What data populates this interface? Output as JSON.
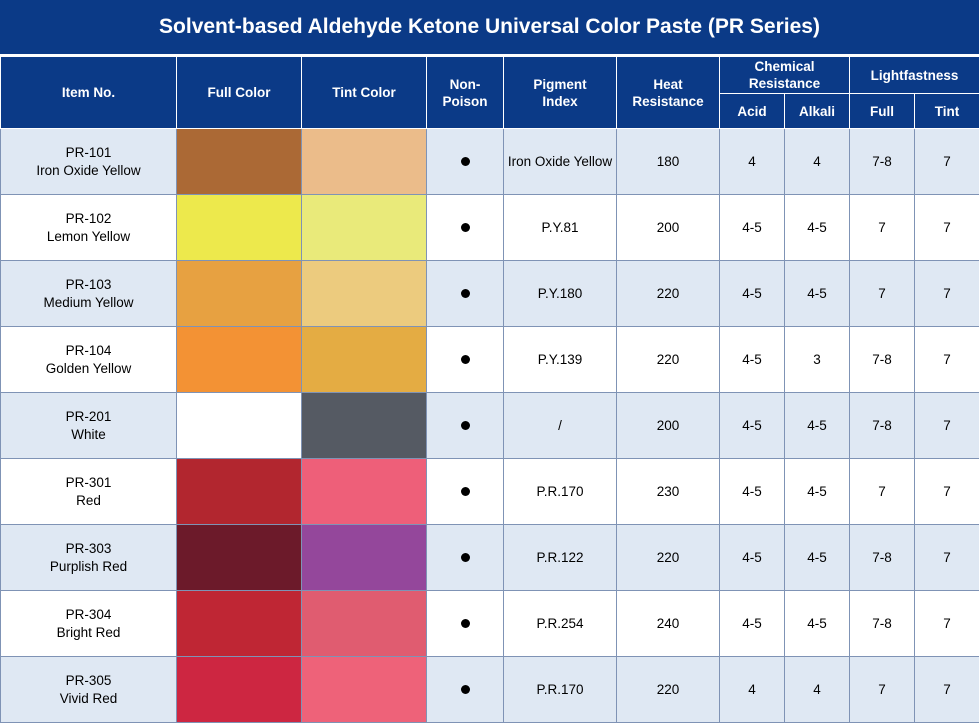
{
  "title": "Solvent-based Aldehyde Ketone Universal Color Paste (PR Series)",
  "headers": {
    "item_no": "Item No.",
    "full_color": "Full Color",
    "tint_color": "Tint Color",
    "non_poison_1": "Non-",
    "non_poison_2": "Poison",
    "pigment_1": "Pigment",
    "pigment_2": "Index",
    "heat_1": "Heat",
    "heat_2": "Resistance",
    "chem_1": "Chemical",
    "chem_2": "Resistance",
    "acid": "Acid",
    "alkali": "Alkali",
    "lightfastness": "Lightfastness",
    "full": "Full",
    "tint": "Tint"
  },
  "colors": {
    "header_bg": "#0b3a87",
    "row_alt_bg": "#dfe8f3"
  },
  "rows": [
    {
      "code": "PR-101",
      "name": "Iron Oxide Yellow",
      "full_color": "#ab6935",
      "tint_color": "#ebbc8a",
      "non_poison": "yes",
      "pigment": "Iron Oxide Yellow",
      "heat": "180",
      "acid": "4",
      "alkali": "4",
      "light_full": "7-8",
      "light_tint": "7"
    },
    {
      "code": "PR-102",
      "name": "Lemon Yellow",
      "full_color": "#ede94c",
      "tint_color": "#e9ea7a",
      "non_poison": "yes",
      "pigment": "P.Y.81",
      "heat": "200",
      "acid": "4-5",
      "alkali": "4-5",
      "light_full": "7",
      "light_tint": "7"
    },
    {
      "code": "PR-103",
      "name": "Medium Yellow",
      "full_color": "#e7a141",
      "tint_color": "#eccb7e",
      "non_poison": "yes",
      "pigment": "P.Y.180",
      "heat": "220",
      "acid": "4-5",
      "alkali": "4-5",
      "light_full": "7",
      "light_tint": "7"
    },
    {
      "code": "PR-104",
      "name": "Golden Yellow",
      "full_color": "#f39234",
      "tint_color": "#e4ac43",
      "non_poison": "yes",
      "pigment": "P.Y.139",
      "heat": "220",
      "acid": "4-5",
      "alkali": "3",
      "light_full": "7-8",
      "light_tint": "7"
    },
    {
      "code": "PR-201",
      "name": "White",
      "full_color": "#ffffff",
      "tint_color": "#555a63",
      "non_poison": "yes",
      "pigment": "/",
      "heat": "200",
      "acid": "4-5",
      "alkali": "4-5",
      "light_full": "7-8",
      "light_tint": "7"
    },
    {
      "code": "PR-301",
      "name": "Red",
      "full_color": "#b2262f",
      "tint_color": "#ee5f79",
      "non_poison": "yes",
      "pigment": "P.R.170",
      "heat": "230",
      "acid": "4-5",
      "alkali": "4-5",
      "light_full": "7",
      "light_tint": "7"
    },
    {
      "code": "PR-303",
      "name": "Purplish Red",
      "full_color": "#6c1a2a",
      "tint_color": "#94479b",
      "non_poison": "yes",
      "pigment": "P.R.122",
      "heat": "220",
      "acid": "4-5",
      "alkali": "4-5",
      "light_full": "7-8",
      "light_tint": "7"
    },
    {
      "code": "PR-304",
      "name": "Bright Red",
      "full_color": "#bf2634",
      "tint_color": "#e05c70",
      "non_poison": "yes",
      "pigment": "P.R.254",
      "heat": "240",
      "acid": "4-5",
      "alkali": "4-5",
      "light_full": "7-8",
      "light_tint": "7"
    },
    {
      "code": "PR-305",
      "name": "Vivid Red",
      "full_color": "#cd2641",
      "tint_color": "#ee6279",
      "non_poison": "yes",
      "pigment": "P.R.170",
      "heat": "220",
      "acid": "4",
      "alkali": "4",
      "light_full": "7",
      "light_tint": "7"
    }
  ]
}
